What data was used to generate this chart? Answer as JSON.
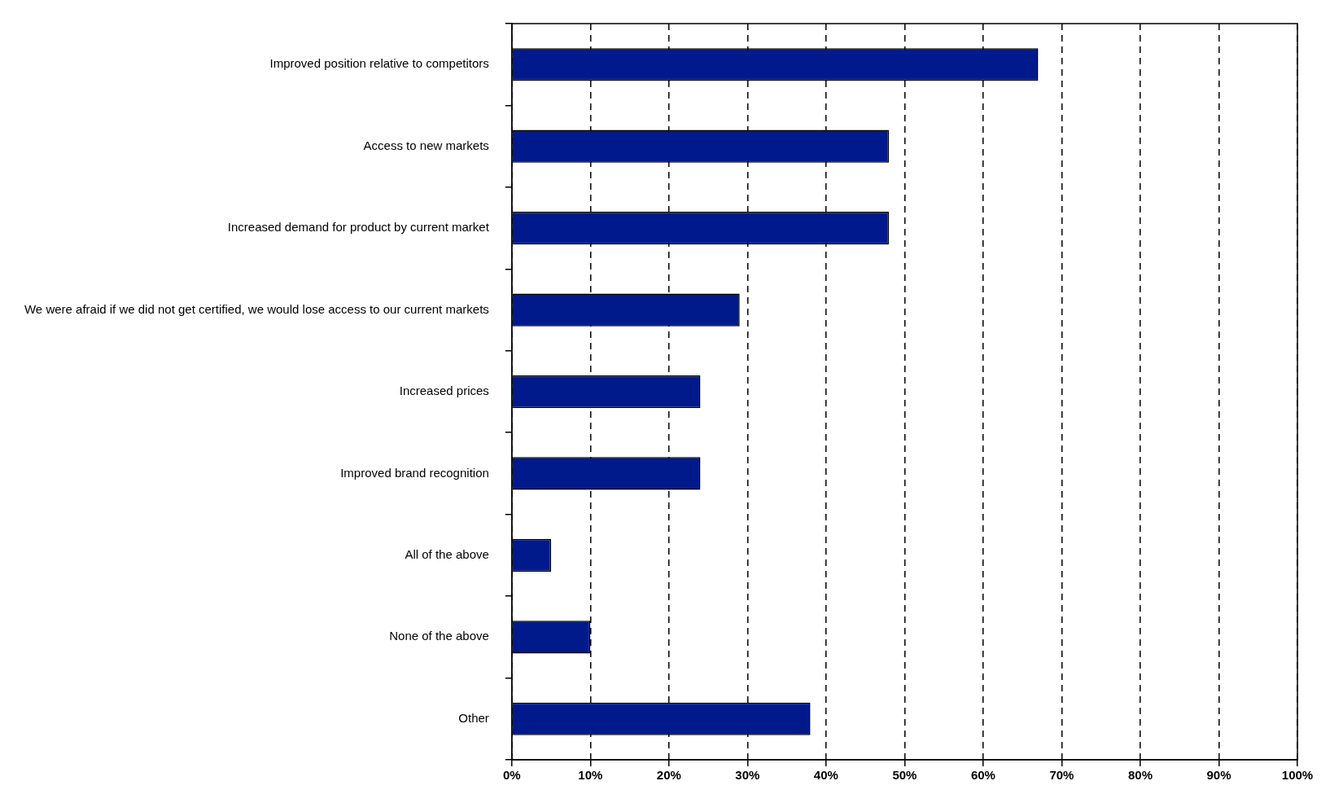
{
  "chart_data": {
    "type": "bar",
    "orientation": "horizontal",
    "categories": [
      "Improved position relative to competitors",
      "Access to new markets",
      "Increased demand for product by current market",
      "We were afraid if we did not get certified, we would lose access to our current markets",
      "Increased prices",
      "Improved brand recognition",
      "All of the above",
      "None of the above",
      "Other"
    ],
    "values": [
      67,
      48,
      48,
      29,
      24,
      24,
      5,
      10,
      38
    ],
    "color": "#001a8c",
    "xlim": [
      0,
      100
    ],
    "xticks": [
      {
        "value": 0,
        "label": "0%"
      },
      {
        "value": 10,
        "label": "10%"
      },
      {
        "value": 20,
        "label": "20%"
      },
      {
        "value": 30,
        "label": "30%"
      },
      {
        "value": 40,
        "label": "40%"
      },
      {
        "value": 50,
        "label": "50%"
      },
      {
        "value": 60,
        "label": "60%"
      },
      {
        "value": 70,
        "label": "70%"
      },
      {
        "value": 80,
        "label": "80%"
      },
      {
        "value": 90,
        "label": "90%"
      },
      {
        "value": 100,
        "label": "100%"
      }
    ],
    "grid": "x",
    "legend": false
  }
}
